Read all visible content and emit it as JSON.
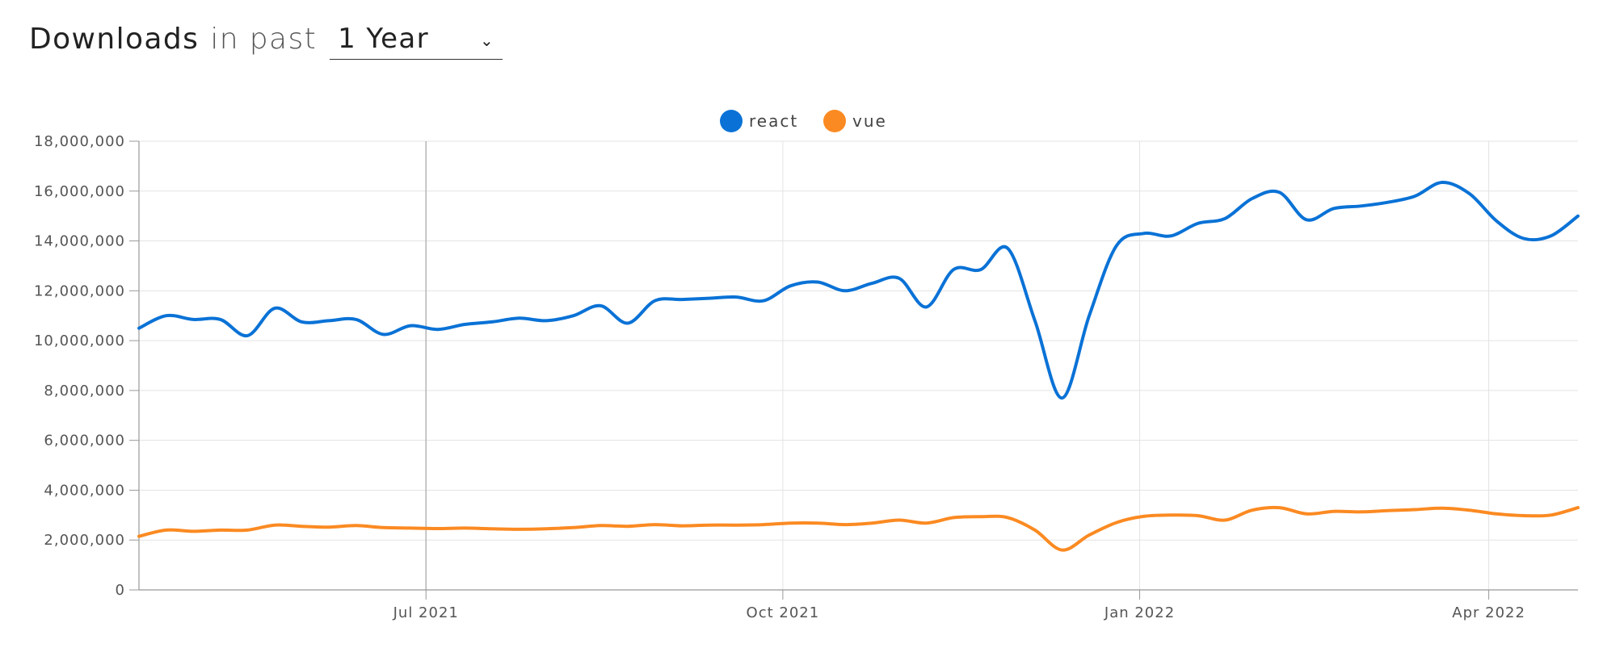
{
  "header": {
    "title": "Downloads",
    "in_past": "in past",
    "period": "1 Year",
    "period_chevron": "chevron-down-icon"
  },
  "chart_data": {
    "type": "line",
    "legend_position": "top-center",
    "grid": true,
    "ylim": [
      0,
      18000000
    ],
    "yticks": [
      0,
      2000000,
      4000000,
      6000000,
      8000000,
      10000000,
      12000000,
      14000000,
      16000000,
      18000000
    ],
    "ytick_labels": [
      "0",
      "2,000,000",
      "4,000,000",
      "6,000,000",
      "8,000,000",
      "10,000,000",
      "12,000,000",
      "14,000,000",
      "16,000,000",
      "18,000,000"
    ],
    "x_range": [
      "2021-04-18",
      "2022-04-24"
    ],
    "xticks": [
      {
        "date": "2021-07-01",
        "label": "Jul 2021"
      },
      {
        "date": "2021-10-01",
        "label": "Oct 2021"
      },
      {
        "date": "2022-01-01",
        "label": "Jan 2022"
      },
      {
        "date": "2022-04-01",
        "label": "Apr 2022"
      }
    ],
    "x": [
      "2021-04-18",
      "2021-04-25",
      "2021-05-02",
      "2021-05-09",
      "2021-05-16",
      "2021-05-23",
      "2021-05-30",
      "2021-06-06",
      "2021-06-13",
      "2021-06-20",
      "2021-06-27",
      "2021-07-04",
      "2021-07-11",
      "2021-07-18",
      "2021-07-25",
      "2021-08-01",
      "2021-08-08",
      "2021-08-15",
      "2021-08-22",
      "2021-08-29",
      "2021-09-05",
      "2021-09-12",
      "2021-09-19",
      "2021-09-26",
      "2021-10-03",
      "2021-10-10",
      "2021-10-17",
      "2021-10-24",
      "2021-10-31",
      "2021-11-07",
      "2021-11-14",
      "2021-11-21",
      "2021-11-28",
      "2021-12-05",
      "2021-12-12",
      "2021-12-19",
      "2021-12-26",
      "2022-01-02",
      "2022-01-09",
      "2022-01-16",
      "2022-01-23",
      "2022-01-30",
      "2022-02-06",
      "2022-02-13",
      "2022-02-20",
      "2022-02-27",
      "2022-03-06",
      "2022-03-13",
      "2022-03-20",
      "2022-03-27",
      "2022-04-03",
      "2022-04-10",
      "2022-04-17",
      "2022-04-24"
    ],
    "series": [
      {
        "name": "react",
        "color": "#0a72d6",
        "values": [
          10500000,
          11000000,
          10850000,
          10850000,
          10200000,
          11300000,
          10750000,
          10800000,
          10850000,
          10250000,
          10600000,
          10450000,
          10650000,
          10750000,
          10900000,
          10800000,
          11000000,
          11400000,
          10700000,
          11600000,
          11650000,
          11700000,
          11750000,
          11600000,
          12200000,
          12350000,
          12000000,
          12300000,
          12500000,
          11350000,
          12850000,
          12850000,
          13700000,
          10800000,
          7700000,
          11000000,
          13800000,
          14300000,
          14200000,
          14700000,
          14900000,
          15700000,
          15950000,
          14850000,
          15300000,
          15400000,
          15550000,
          15800000,
          16350000,
          15900000,
          14800000,
          14100000,
          14200000,
          15000000
        ]
      },
      {
        "name": "vue",
        "color": "#fb8a22",
        "values": [
          2150000,
          2400000,
          2350000,
          2400000,
          2400000,
          2600000,
          2550000,
          2520000,
          2580000,
          2500000,
          2480000,
          2460000,
          2480000,
          2450000,
          2430000,
          2450000,
          2500000,
          2580000,
          2550000,
          2620000,
          2570000,
          2600000,
          2600000,
          2620000,
          2680000,
          2680000,
          2620000,
          2680000,
          2800000,
          2680000,
          2900000,
          2940000,
          2900000,
          2400000,
          1600000,
          2200000,
          2700000,
          2950000,
          3000000,
          2980000,
          2800000,
          3200000,
          3300000,
          3050000,
          3150000,
          3130000,
          3180000,
          3220000,
          3280000,
          3200000,
          3050000,
          2980000,
          3000000,
          3300000
        ]
      }
    ]
  }
}
